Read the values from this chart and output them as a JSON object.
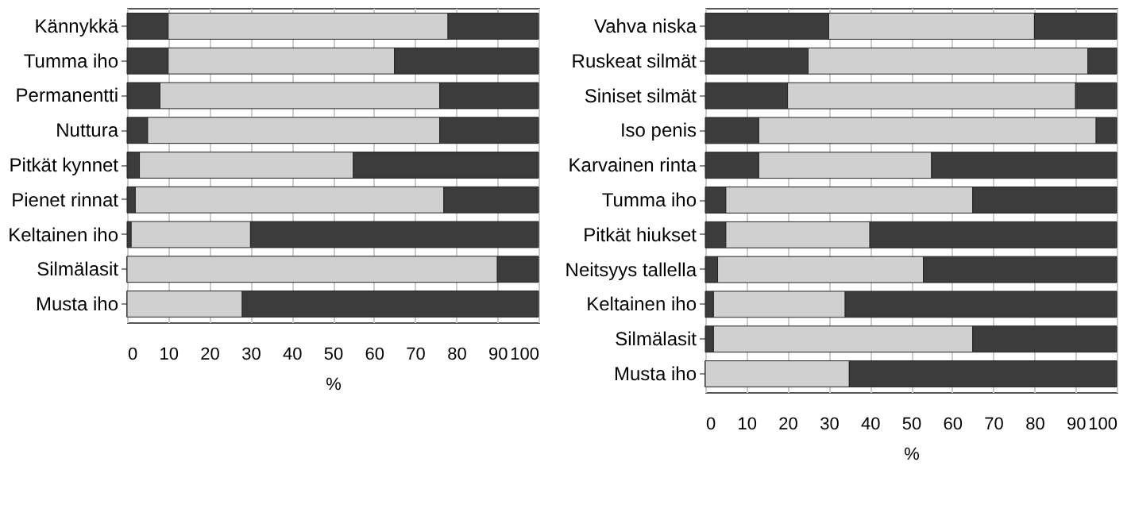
{
  "chart_data": [
    {
      "type": "bar",
      "orientation": "horizontal",
      "stacked": true,
      "xlabel": "%",
      "categories": [
        "Kännykkä",
        "Tumma iho",
        "Permanentti",
        "Nuttura",
        "Pitkät kynnet",
        "Pienet rinnat",
        "Keltainen iho",
        "Silmälasit",
        "Musta iho"
      ],
      "xlim": [
        0,
        100
      ],
      "xticks": [
        0,
        10,
        20,
        30,
        40,
        50,
        60,
        70,
        80,
        90,
        100
      ],
      "grid": "x",
      "series": [
        {
          "color": "#3c3c3c",
          "values": [
            10,
            10,
            8,
            5,
            3,
            2,
            1,
            0,
            0
          ]
        },
        {
          "color": "#d0d0d0",
          "values": [
            68,
            55,
            68,
            71,
            52,
            75,
            29,
            90,
            28
          ]
        },
        {
          "color": "#3c3c3c",
          "values": [
            22,
            35,
            24,
            24,
            45,
            23,
            70,
            10,
            72
          ]
        }
      ]
    },
    {
      "type": "bar",
      "orientation": "horizontal",
      "stacked": true,
      "xlabel": "%",
      "categories": [
        "Vahva niska",
        "Ruskeat silmät",
        "Siniset silmät",
        "Iso penis",
        "Karvainen rinta",
        "Tumma iho",
        "Pitkät hiukset",
        "Neitsyys tallella",
        "Keltainen iho",
        "Silmälasit",
        "Musta iho"
      ],
      "xlim": [
        0,
        100
      ],
      "xticks": [
        0,
        10,
        20,
        30,
        40,
        50,
        60,
        70,
        80,
        90,
        100
      ],
      "grid": "x",
      "series": [
        {
          "color": "#3c3c3c",
          "values": [
            30,
            25,
            20,
            13,
            13,
            5,
            5,
            3,
            2,
            2,
            0
          ]
        },
        {
          "color": "#d0d0d0",
          "values": [
            50,
            68,
            70,
            82,
            42,
            60,
            35,
            50,
            32,
            63,
            35
          ]
        },
        {
          "color": "#3c3c3c",
          "values": [
            20,
            7,
            10,
            5,
            45,
            35,
            60,
            47,
            66,
            35,
            65
          ]
        }
      ]
    }
  ]
}
